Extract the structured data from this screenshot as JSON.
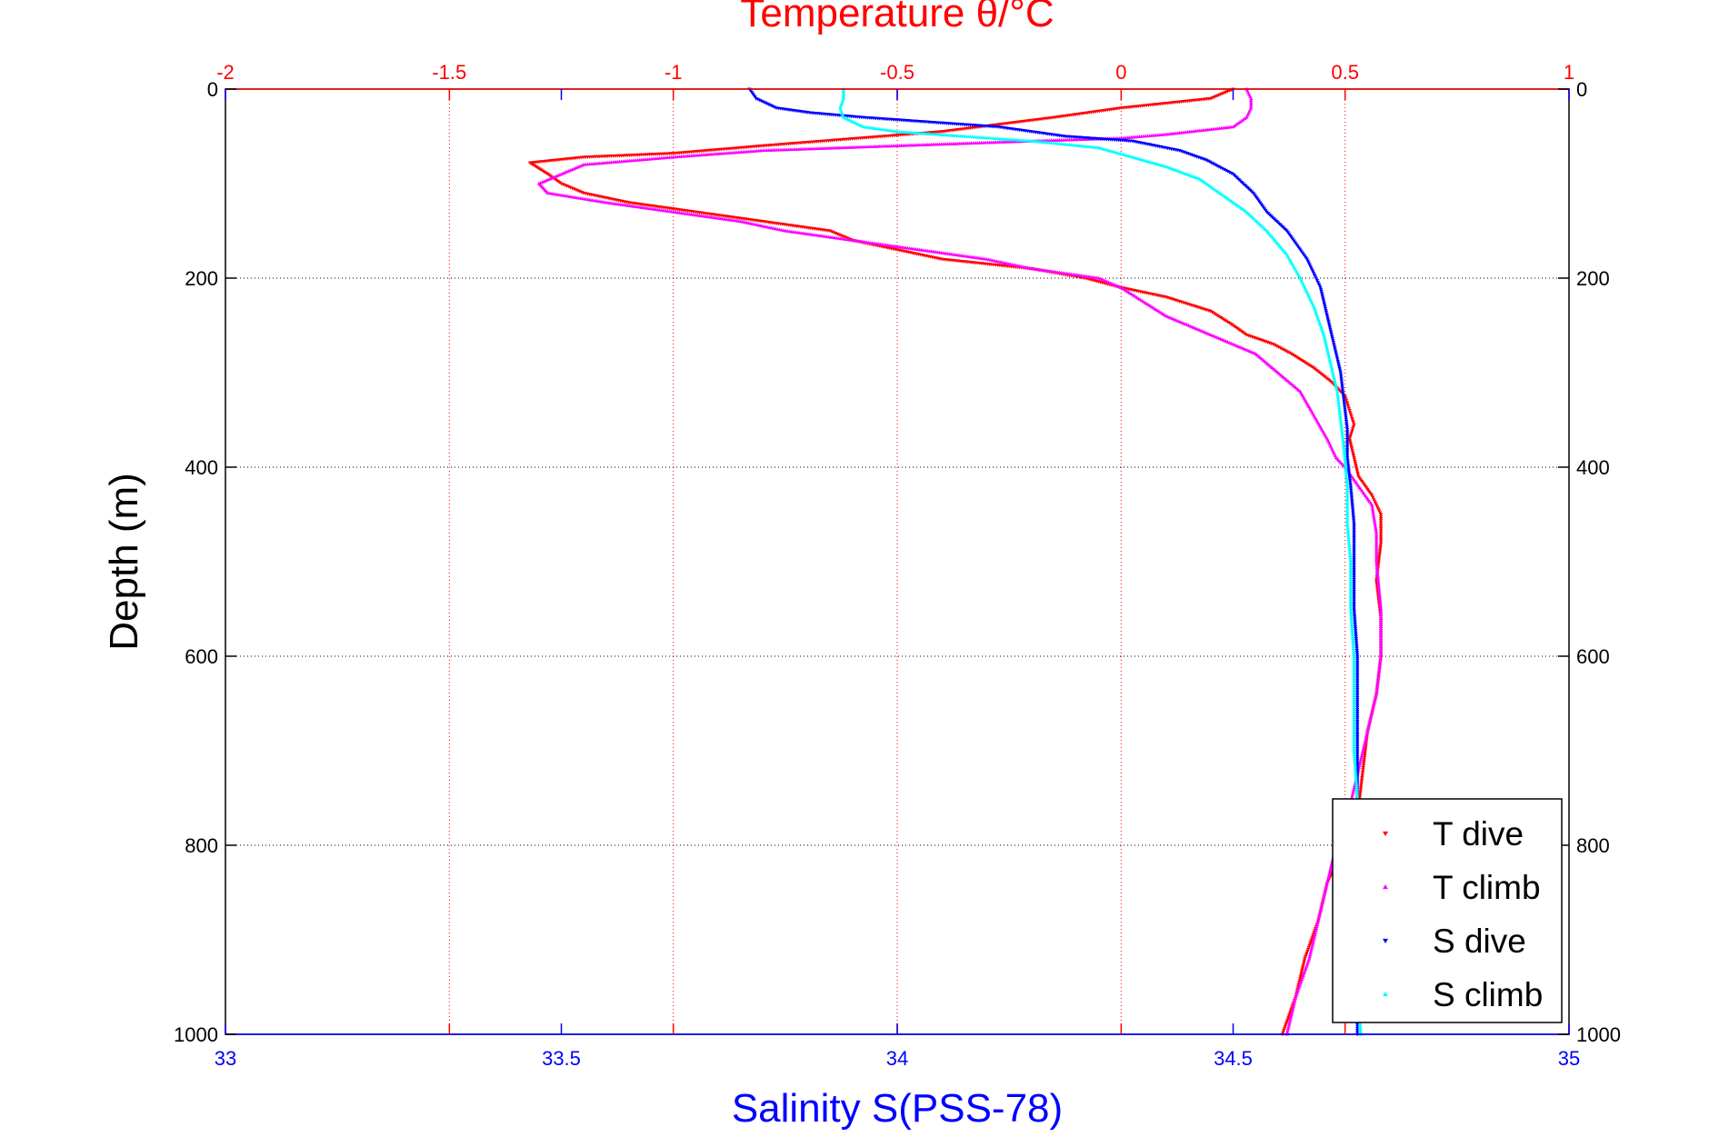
{
  "chart_data": {
    "type": "scatter",
    "title": "Temperature θ/°C",
    "xlabel_bottom": "Salinity S(PSS-78)",
    "ylabel": "Depth (m)",
    "xlim_temperature": [
      -2,
      1
    ],
    "xlim_salinity": [
      33,
      35
    ],
    "ylim": [
      0,
      1000
    ],
    "x_ticks_temperature": [
      "-2",
      "-1.5",
      "-1",
      "-0.5",
      "0",
      "0.5",
      "1"
    ],
    "x_ticks_salinity": [
      "33",
      "33.5",
      "34",
      "34.5",
      "35"
    ],
    "y_ticks": [
      "0",
      "200",
      "400",
      "600",
      "800",
      "1000"
    ],
    "grid": true,
    "legend_position": "bottom-right",
    "series": [
      {
        "name": "T dive",
        "variable": "temperature",
        "color": "#ff0000",
        "marker": "triangle-down",
        "points": [
          [
            0.25,
            0
          ],
          [
            0.2,
            10
          ],
          [
            0.1,
            15
          ],
          [
            0.0,
            20
          ],
          [
            -0.15,
            30
          ],
          [
            -0.4,
            45
          ],
          [
            -0.8,
            60
          ],
          [
            -1.0,
            68
          ],
          [
            -1.2,
            72
          ],
          [
            -1.32,
            78
          ],
          [
            -1.28,
            90
          ],
          [
            -1.25,
            100
          ],
          [
            -1.2,
            110
          ],
          [
            -1.1,
            120
          ],
          [
            -0.95,
            130
          ],
          [
            -0.8,
            140
          ],
          [
            -0.65,
            150
          ],
          [
            -0.6,
            160
          ],
          [
            -0.5,
            170
          ],
          [
            -0.4,
            180
          ],
          [
            -0.2,
            190
          ],
          [
            -0.08,
            200
          ],
          [
            0.0,
            210
          ],
          [
            0.1,
            220
          ],
          [
            0.2,
            235
          ],
          [
            0.25,
            250
          ],
          [
            0.28,
            260
          ],
          [
            0.34,
            270
          ],
          [
            0.38,
            280
          ],
          [
            0.43,
            295
          ],
          [
            0.47,
            310
          ],
          [
            0.5,
            325
          ],
          [
            0.51,
            340
          ],
          [
            0.52,
            355
          ],
          [
            0.51,
            370
          ],
          [
            0.52,
            390
          ],
          [
            0.53,
            410
          ],
          [
            0.56,
            430
          ],
          [
            0.58,
            450
          ],
          [
            0.58,
            480
          ],
          [
            0.57,
            520
          ],
          [
            0.58,
            560
          ],
          [
            0.58,
            600
          ],
          [
            0.57,
            640
          ],
          [
            0.55,
            680
          ],
          [
            0.54,
            720
          ],
          [
            0.53,
            760
          ],
          [
            0.5,
            800
          ],
          [
            0.46,
            840
          ],
          [
            0.44,
            880
          ],
          [
            0.41,
            920
          ],
          [
            0.39,
            960
          ],
          [
            0.36,
            1000
          ]
        ]
      },
      {
        "name": "T climb",
        "variable": "temperature",
        "color": "#ff00ff",
        "marker": "triangle-up",
        "points": [
          [
            0.28,
            0
          ],
          [
            0.29,
            10
          ],
          [
            0.29,
            20
          ],
          [
            0.28,
            30
          ],
          [
            0.25,
            40
          ],
          [
            0.1,
            48
          ],
          [
            0.0,
            52
          ],
          [
            -0.2,
            55
          ],
          [
            -0.5,
            60
          ],
          [
            -0.8,
            65
          ],
          [
            -1.0,
            72
          ],
          [
            -1.2,
            80
          ],
          [
            -1.25,
            90
          ],
          [
            -1.3,
            100
          ],
          [
            -1.28,
            110
          ],
          [
            -1.15,
            120
          ],
          [
            -1.0,
            130
          ],
          [
            -0.85,
            140
          ],
          [
            -0.75,
            150
          ],
          [
            -0.6,
            160
          ],
          [
            -0.45,
            170
          ],
          [
            -0.3,
            180
          ],
          [
            -0.2,
            190
          ],
          [
            -0.05,
            200
          ],
          [
            0.0,
            210
          ],
          [
            0.05,
            225
          ],
          [
            0.1,
            240
          ],
          [
            0.2,
            260
          ],
          [
            0.3,
            280
          ],
          [
            0.35,
            300
          ],
          [
            0.4,
            320
          ],
          [
            0.43,
            345
          ],
          [
            0.46,
            370
          ],
          [
            0.48,
            390
          ],
          [
            0.5,
            400
          ],
          [
            0.53,
            420
          ],
          [
            0.56,
            440
          ],
          [
            0.57,
            470
          ],
          [
            0.57,
            500
          ],
          [
            0.58,
            550
          ],
          [
            0.58,
            600
          ],
          [
            0.57,
            640
          ],
          [
            0.55,
            680
          ],
          [
            0.53,
            720
          ],
          [
            0.51,
            760
          ],
          [
            0.48,
            800
          ],
          [
            0.46,
            840
          ],
          [
            0.44,
            880
          ],
          [
            0.42,
            920
          ],
          [
            0.39,
            960
          ],
          [
            0.37,
            1000
          ]
        ]
      },
      {
        "name": "S dive",
        "variable": "salinity",
        "color": "#0000ff",
        "marker": "triangle-down",
        "points": [
          [
            33.78,
            0
          ],
          [
            33.79,
            10
          ],
          [
            33.82,
            20
          ],
          [
            33.87,
            25
          ],
          [
            33.95,
            30
          ],
          [
            34.05,
            35
          ],
          [
            34.15,
            40
          ],
          [
            34.25,
            50
          ],
          [
            34.35,
            55
          ],
          [
            34.42,
            65
          ],
          [
            34.46,
            75
          ],
          [
            34.5,
            90
          ],
          [
            34.53,
            110
          ],
          [
            34.55,
            130
          ],
          [
            34.58,
            150
          ],
          [
            34.61,
            180
          ],
          [
            34.63,
            210
          ],
          [
            34.64,
            240
          ],
          [
            34.65,
            270
          ],
          [
            34.66,
            300
          ],
          [
            34.665,
            330
          ],
          [
            34.67,
            360
          ],
          [
            34.67,
            390
          ],
          [
            34.675,
            420
          ],
          [
            34.68,
            460
          ],
          [
            34.68,
            500
          ],
          [
            34.68,
            550
          ],
          [
            34.685,
            600
          ],
          [
            34.685,
            650
          ],
          [
            34.685,
            700
          ],
          [
            34.685,
            750
          ],
          [
            34.685,
            800
          ],
          [
            34.685,
            850
          ],
          [
            34.685,
            900
          ],
          [
            34.685,
            950
          ],
          [
            34.685,
            1000
          ]
        ]
      },
      {
        "name": "S climb",
        "variable": "salinity",
        "color": "#00ffff",
        "marker": "triangle-up",
        "points": [
          [
            33.92,
            0
          ],
          [
            33.92,
            10
          ],
          [
            33.915,
            20
          ],
          [
            33.92,
            30
          ],
          [
            33.95,
            40
          ],
          [
            34.0,
            45
          ],
          [
            34.1,
            50
          ],
          [
            34.2,
            55
          ],
          [
            34.3,
            62
          ],
          [
            34.35,
            72
          ],
          [
            34.4,
            82
          ],
          [
            34.45,
            95
          ],
          [
            34.48,
            110
          ],
          [
            34.52,
            130
          ],
          [
            34.55,
            150
          ],
          [
            34.58,
            175
          ],
          [
            34.6,
            200
          ],
          [
            34.62,
            230
          ],
          [
            34.635,
            260
          ],
          [
            34.645,
            290
          ],
          [
            34.655,
            320
          ],
          [
            34.66,
            350
          ],
          [
            34.665,
            380
          ],
          [
            34.67,
            420
          ],
          [
            34.67,
            460
          ],
          [
            34.675,
            500
          ],
          [
            34.675,
            550
          ],
          [
            34.68,
            600
          ],
          [
            34.68,
            650
          ],
          [
            34.68,
            700
          ],
          [
            34.685,
            750
          ],
          [
            34.685,
            800
          ],
          [
            34.685,
            850
          ],
          [
            34.685,
            900
          ],
          [
            34.685,
            950
          ],
          [
            34.69,
            1000
          ]
        ]
      }
    ],
    "legend": [
      {
        "label": "T dive",
        "color": "#ff0000",
        "marker": "triangle-down"
      },
      {
        "label": "T climb",
        "color": "#ff00ff",
        "marker": "triangle-up"
      },
      {
        "label": "S dive",
        "color": "#0000ff",
        "marker": "triangle-down"
      },
      {
        "label": "S climb",
        "color": "#00ffff",
        "marker": "triangle-up"
      }
    ]
  }
}
